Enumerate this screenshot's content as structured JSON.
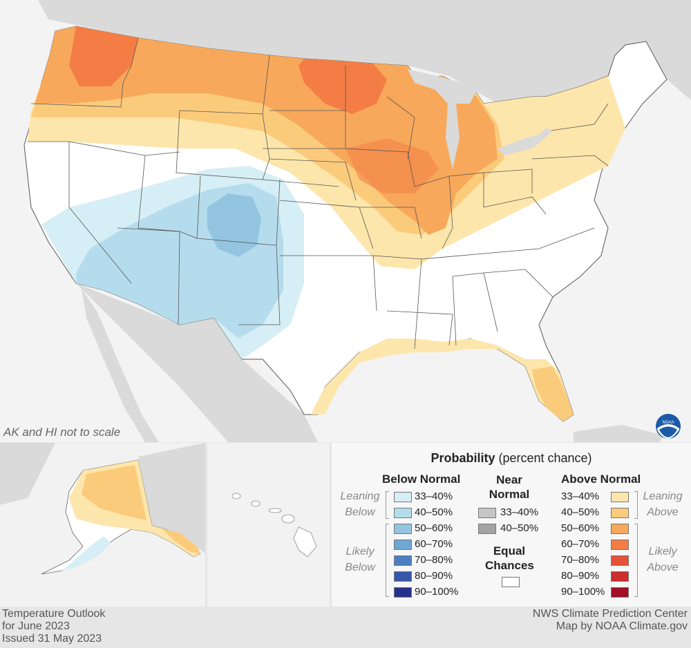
{
  "map_note": "AK and HI not to scale",
  "legend": {
    "title_bold": "Probability",
    "title_rest": " (percent chance)",
    "below_header": "Below Normal",
    "near_header_line1": "Near",
    "near_header_line2": "Normal",
    "above_header": "Above Normal",
    "leaning_below_1": "Leaning",
    "leaning_below_2": "Below",
    "likely_below_1": "Likely",
    "likely_below_2": "Below",
    "leaning_above_1": "Leaning",
    "leaning_above_2": "Above",
    "likely_above_1": "Likely",
    "likely_above_2": "Above",
    "equal_line1": "Equal",
    "equal_line2": "Chances",
    "below_items": [
      {
        "label": "33–40%",
        "color": "#d6eef5"
      },
      {
        "label": "40–50%",
        "color": "#b5dcec"
      },
      {
        "label": "50–60%",
        "color": "#93c5e0"
      },
      {
        "label": "60–70%",
        "color": "#6fa6d3"
      },
      {
        "label": "70–80%",
        "color": "#4c7fc0"
      },
      {
        "label": "80–90%",
        "color": "#3657aa"
      },
      {
        "label": "90–100%",
        "color": "#28308e"
      }
    ],
    "near_items": [
      {
        "label": "33–40%",
        "color": "#c6c6c6"
      },
      {
        "label": "40–50%",
        "color": "#a4a4a4"
      }
    ],
    "equal_color": "#ffffff",
    "above_items": [
      {
        "label": "33–40%",
        "color": "#fde6ab"
      },
      {
        "label": "40–50%",
        "color": "#fbcb7c"
      },
      {
        "label": "50–60%",
        "color": "#f8a85b"
      },
      {
        "label": "60–70%",
        "color": "#f37d45"
      },
      {
        "label": "70–80%",
        "color": "#e45237"
      },
      {
        "label": "80–90%",
        "color": "#cc2d2d"
      },
      {
        "label": "90–100%",
        "color": "#a30d27"
      }
    ]
  },
  "footer": {
    "left_line1": "Temperature Outlook",
    "left_line2": "for June 2023",
    "left_line3": "Issued 31 May 2023",
    "right_line1": "NWS Climate Prediction Center",
    "right_line2": "Map by NOAA Climate.gov"
  }
}
